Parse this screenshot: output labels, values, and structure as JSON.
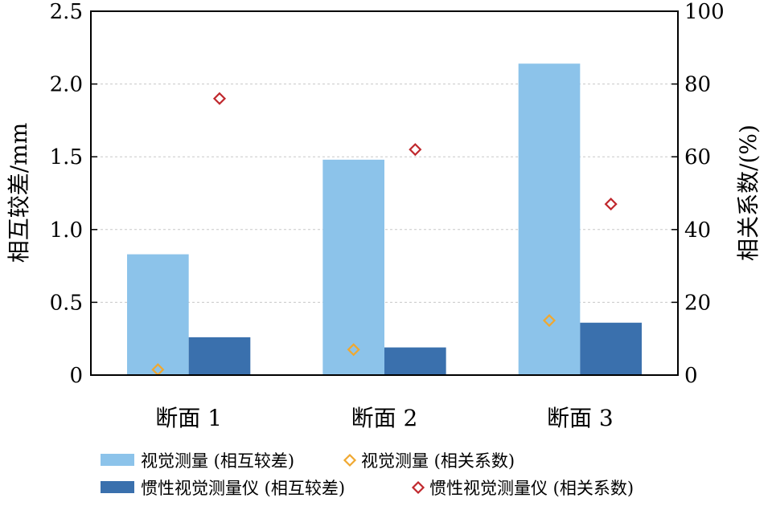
{
  "chart_data": {
    "type": "bar",
    "categories": [
      "断面 1",
      "断面 2",
      "断面 3"
    ],
    "series": [
      {
        "name": "视觉测量 (相互较差)",
        "axis": "left",
        "kind": "bar",
        "color": "#8cc3ea",
        "values": [
          0.83,
          1.48,
          2.14
        ]
      },
      {
        "name": "惯性视觉测量仪 (相互较差)",
        "axis": "left",
        "kind": "bar",
        "color": "#3a70ad",
        "values": [
          0.26,
          0.19,
          0.36
        ]
      },
      {
        "name": "视觉测量 (相关系数)",
        "axis": "right",
        "kind": "scatter",
        "color": "#f0a830",
        "values": [
          1.5,
          7,
          15
        ]
      },
      {
        "name": "惯性视觉测量仪 (相关系数)",
        "axis": "right",
        "kind": "scatter",
        "color": "#c0282d",
        "values": [
          76,
          62,
          47
        ]
      }
    ],
    "ylabel": "相互较差/mm",
    "y2label": "相关系数/(%)",
    "ylim": [
      0,
      2.5
    ],
    "y2lim": [
      0,
      100
    ],
    "yticks": [
      "0",
      "0.5",
      "1.0",
      "1.5",
      "2.0",
      "2.5"
    ],
    "y2ticks": [
      "0",
      "20",
      "40",
      "60",
      "80",
      "100"
    ],
    "grid": true,
    "legend_position": "bottom"
  }
}
